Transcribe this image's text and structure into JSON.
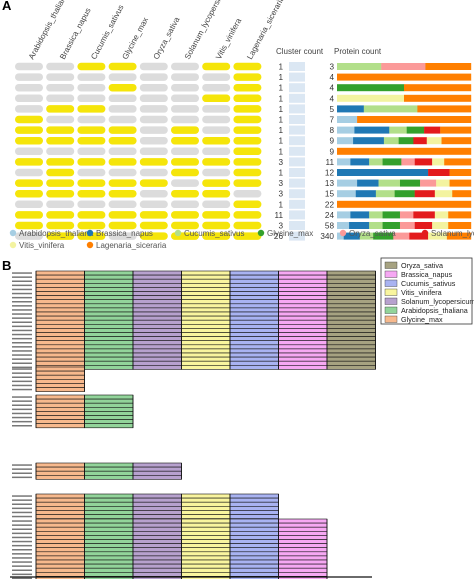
{
  "panel_a": {
    "label": "A",
    "species_headers": [
      "Arabidopsis_thaliana",
      "Brassica_napus",
      "Cucumis_sativus",
      "Glycine_max",
      "Oryza_sativa",
      "Solanum_lycopersicum",
      "Vitis_vinifera",
      "Lagenaria_siceraria"
    ],
    "cluster_count_title": "Cluster count",
    "protein_count_title": "Protein count",
    "colors": {
      "present": "#f5e50a",
      "absent": "#dcdcdc",
      "cluster_bar": "#dbe7f3"
    },
    "presence_matrix": [
      [
        0,
        0,
        1,
        1,
        0,
        0,
        1,
        1
      ],
      [
        0,
        0,
        0,
        0,
        0,
        0,
        0,
        1
      ],
      [
        0,
        0,
        0,
        1,
        0,
        0,
        0,
        1
      ],
      [
        0,
        0,
        0,
        0,
        0,
        0,
        1,
        1
      ],
      [
        0,
        1,
        1,
        0,
        0,
        0,
        0,
        1
      ],
      [
        1,
        0,
        0,
        0,
        0,
        0,
        0,
        1
      ],
      [
        1,
        1,
        1,
        1,
        0,
        1,
        0,
        1
      ],
      [
        1,
        1,
        1,
        1,
        0,
        1,
        1,
        1
      ],
      [
        0,
        0,
        0,
        0,
        0,
        0,
        0,
        1
      ],
      [
        1,
        1,
        1,
        1,
        1,
        1,
        1,
        1
      ],
      [
        0,
        1,
        0,
        0,
        0,
        1,
        0,
        1
      ],
      [
        1,
        1,
        1,
        1,
        1,
        0,
        1,
        1
      ],
      [
        1,
        1,
        1,
        1,
        0,
        1,
        1,
        0
      ],
      [
        0,
        0,
        0,
        0,
        0,
        0,
        0,
        1
      ],
      [
        1,
        1,
        1,
        1,
        1,
        1,
        1,
        1
      ],
      [
        1,
        1,
        1,
        1,
        1,
        1,
        1,
        1
      ],
      [
        0,
        1,
        1,
        0,
        1,
        1,
        1,
        1
      ]
    ]
  },
  "chart_data": [
    {
      "type": "bar",
      "title": "Cluster count",
      "values": [
        1,
        1,
        1,
        1,
        1,
        1,
        1,
        1,
        1,
        3,
        1,
        3,
        3,
        1,
        11,
        3,
        26
      ]
    },
    {
      "type": "bar",
      "title": "Protein count",
      "values": [
        3,
        4,
        4,
        4,
        5,
        7,
        8,
        9,
        9,
        11,
        12,
        13,
        15,
        22,
        24,
        58,
        340
      ],
      "stack_colors": [
        "#a6cee3",
        "#1f78b4",
        "#b2df8a",
        "#33a02c",
        "#fb9a99",
        "#e31a1c",
        "#f3f3a0",
        "#ff7f00"
      ],
      "segments": [
        [
          0,
          0,
          0.33,
          0,
          0.33,
          0,
          0,
          0.34
        ],
        [
          0,
          0,
          0,
          0,
          0,
          0,
          0,
          1
        ],
        [
          0,
          0,
          0,
          0.5,
          0,
          0,
          0,
          0.5
        ],
        [
          0,
          0,
          0,
          0,
          0,
          0,
          0.5,
          0.5
        ],
        [
          0,
          0.2,
          0.4,
          0,
          0,
          0,
          0,
          0.4
        ],
        [
          0.15,
          0,
          0,
          0,
          0,
          0,
          0,
          0.85
        ],
        [
          0.13,
          0.26,
          0.13,
          0.13,
          0,
          0.12,
          0,
          0.23
        ],
        [
          0.12,
          0.23,
          0.11,
          0.11,
          0,
          0.1,
          0.11,
          0.22
        ],
        [
          0,
          0,
          0,
          0,
          0,
          0,
          0,
          1
        ],
        [
          0.1,
          0.14,
          0.1,
          0.14,
          0.1,
          0.13,
          0.09,
          0.2
        ],
        [
          0,
          0.68,
          0,
          0,
          0,
          0.16,
          0,
          0.16
        ],
        [
          0.15,
          0.16,
          0.16,
          0.15,
          0.12,
          0,
          0.1,
          0.16
        ],
        [
          0.14,
          0.15,
          0.14,
          0.15,
          0,
          0.15,
          0.13,
          0.14
        ],
        [
          0,
          0,
          0,
          0,
          0,
          0,
          0,
          1
        ],
        [
          0.1,
          0.14,
          0.1,
          0.13,
          0.1,
          0.16,
          0.1,
          0.17
        ],
        [
          0.09,
          0.15,
          0.1,
          0.13,
          0.11,
          0.13,
          0.12,
          0.17
        ],
        [
          0.05,
          0.12,
          0.1,
          0.15,
          0.12,
          0.14,
          0.14,
          0.18
        ]
      ]
    }
  ],
  "legend_a": [
    {
      "name": "Arabidopsis_thaliana",
      "color": "#a6cee3"
    },
    {
      "name": "Brassica_napus",
      "color": "#1f78b4"
    },
    {
      "name": "Cucumis_sativus",
      "color": "#b2df8a"
    },
    {
      "name": "Glycine_max",
      "color": "#33a02c"
    },
    {
      "name": "Oryza_sativa",
      "color": "#fb9a99"
    },
    {
      "name": "Solanum_lycopersicum",
      "color": "#e31a1c"
    },
    {
      "name": "Vitis_vinifera",
      "color": "#f3f3a0"
    },
    {
      "name": "Lagenaria_siceraria",
      "color": "#ff7f00"
    }
  ],
  "panel_b": {
    "label": "B",
    "legend": [
      {
        "name": "Oryza_sativa",
        "color": "#a6a281"
      },
      {
        "name": "Brassica_napus",
        "color": "#f6a8f3"
      },
      {
        "name": "Cucumis_sativus",
        "color": "#a9b3f2"
      },
      {
        "name": "Vitis_vinifera",
        "color": "#f9f59e"
      },
      {
        "name": "Solanum_lycopersicum",
        "color": "#b7a1ce"
      },
      {
        "name": "Arabidopsis_thaliana",
        "color": "#92d49a"
      },
      {
        "name": "Glycine_max",
        "color": "#f7b98d"
      }
    ],
    "column_colors": [
      "#f7b98d",
      "#92d49a",
      "#b7a1ce",
      "#f9f59e",
      "#a9b3f2",
      "#f6a8f3",
      "#a6a281"
    ],
    "groups": [
      {
        "columns": 7,
        "rows": 24
      },
      {
        "columns": 1,
        "rows": 6
      },
      {
        "columns": 2,
        "rows": 8
      },
      {
        "columns": 3,
        "rows": 4
      },
      {
        "columns": 5,
        "rows": 6
      },
      {
        "columns": 6,
        "rows": 15
      }
    ]
  }
}
